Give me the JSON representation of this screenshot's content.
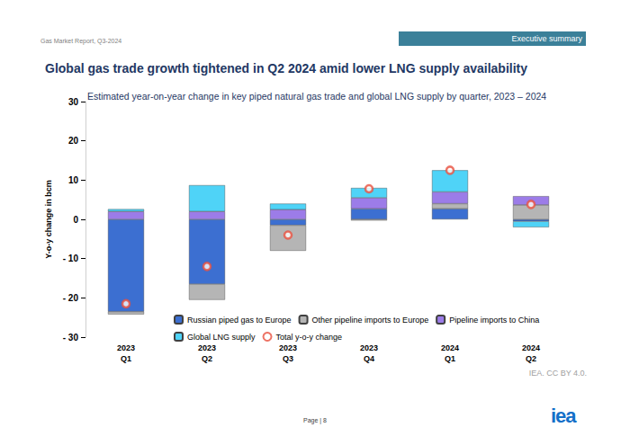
{
  "page": {
    "header": "Gas Market Report, Q3-2024",
    "section": "Executive summary",
    "source": "IEA. CC BY 4.0.",
    "page_number": "Page | 8",
    "logo": "iea"
  },
  "chart_data": {
    "type": "bar",
    "title": "Global gas trade growth tightened in Q2 2024 amid lower LNG supply availability",
    "subtitle": "Estimated year-on-year change in key piped natural gas trade and global LNG supply by quarter, 2023 – 2024",
    "y_label": "Y-o-y change in bcm",
    "categories": [
      "2023\nQ1",
      "2023\nQ2",
      "2023\nQ3",
      "2023\nQ4",
      "2024\nQ1",
      "2024\nQ2"
    ],
    "series": [
      {
        "name": "Russian piped gas to Europe",
        "type": "bar",
        "color": "#3c6fd1",
        "values": [
          -23.5,
          -16.5,
          -1.5,
          2.7,
          2.7,
          -0.5
        ]
      },
      {
        "name": "Other pipeline imports to Europe",
        "type": "bar",
        "color": "#b5b5b5",
        "values": [
          -0.7,
          -4,
          -6.5,
          -0.3,
          1.3,
          3.7
        ]
      },
      {
        "name": "Pipeline imports to China",
        "type": "bar",
        "color": "#9c7ce8",
        "values": [
          2,
          2,
          2.5,
          2.8,
          3,
          2.2
        ]
      },
      {
        "name": "Global LNG supply",
        "type": "bar",
        "color": "#4fd3f7",
        "values": [
          0.6,
          6.7,
          1.5,
          2.5,
          5.5,
          -1.5
        ]
      },
      {
        "name": "Total y-o-y change",
        "type": "scatter",
        "marker": "circle",
        "color": "#e8503f",
        "values": [
          -21.5,
          -12,
          -4,
          7.8,
          12.5,
          3.8
        ]
      }
    ],
    "ylim": [
      -30,
      30
    ],
    "yticks": [
      {
        "value": -30,
        "label": "- 30"
      },
      {
        "value": -20,
        "label": "- 20"
      },
      {
        "value": -10,
        "label": "- 10"
      },
      0,
      10,
      20,
      30
    ],
    "stacked": true,
    "grid": false,
    "legend": "bottom",
    "data_labels": false
  }
}
